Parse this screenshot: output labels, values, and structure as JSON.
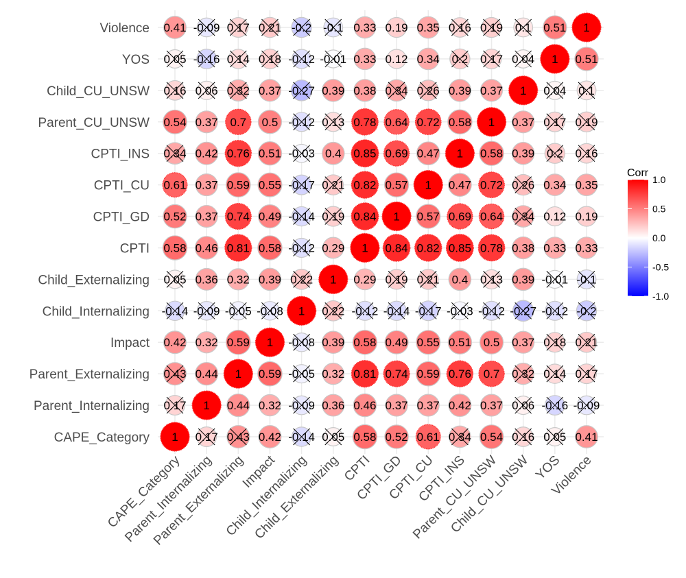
{
  "chart_data": {
    "type": "heatmap",
    "style": "circle correlation matrix",
    "variables": [
      "CAPE_Category",
      "Parent_Internalizing",
      "Parent_Externalizing",
      "Impact",
      "Child_Internalizing",
      "Child_Externalizing",
      "CPTI",
      "CPTI_GD",
      "CPTI_CU",
      "CPTI_INS",
      "Parent_CU_UNSW",
      "Child_CU_UNSW",
      "YOS",
      "Violence"
    ],
    "matrix": [
      [
        1,
        0.17,
        0.43,
        0.42,
        -0.14,
        0.05,
        0.58,
        0.52,
        0.61,
        0.34,
        0.54,
        0.16,
        0.05,
        0.41
      ],
      [
        0.17,
        1,
        0.44,
        0.32,
        -0.09,
        0.36,
        0.46,
        0.37,
        0.37,
        0.42,
        0.37,
        0.06,
        -0.16,
        -0.09
      ],
      [
        0.43,
        0.44,
        1,
        0.59,
        -0.05,
        0.32,
        0.81,
        0.74,
        0.59,
        0.76,
        0.7,
        0.32,
        0.14,
        0.17
      ],
      [
        0.42,
        0.32,
        0.59,
        1,
        -0.08,
        0.39,
        0.58,
        0.49,
        0.55,
        0.51,
        0.5,
        0.37,
        0.18,
        0.21
      ],
      [
        -0.14,
        -0.09,
        -0.05,
        -0.08,
        1,
        0.22,
        -0.12,
        -0.14,
        -0.17,
        -0.03,
        -0.12,
        -0.27,
        -0.12,
        -0.2
      ],
      [
        0.05,
        0.36,
        0.32,
        0.39,
        0.22,
        1,
        0.29,
        0.19,
        0.21,
        0.4,
        0.13,
        0.39,
        -0.01,
        -0.1
      ],
      [
        0.58,
        0.46,
        0.81,
        0.58,
        -0.12,
        0.29,
        1,
        0.84,
        0.82,
        0.85,
        0.78,
        0.38,
        0.33,
        0.33
      ],
      [
        0.52,
        0.37,
        0.74,
        0.49,
        -0.14,
        0.19,
        0.84,
        1,
        0.57,
        0.69,
        0.64,
        0.34,
        0.12,
        0.19
      ],
      [
        0.61,
        0.37,
        0.59,
        0.55,
        -0.17,
        0.21,
        0.82,
        0.57,
        1,
        0.47,
        0.72,
        0.26,
        0.34,
        0.35
      ],
      [
        0.34,
        0.42,
        0.76,
        0.51,
        -0.03,
        0.4,
        0.85,
        0.69,
        0.47,
        1,
        0.58,
        0.39,
        0.2,
        0.16
      ],
      [
        0.54,
        0.37,
        0.7,
        0.5,
        -0.12,
        0.13,
        0.78,
        0.64,
        0.72,
        0.58,
        1,
        0.37,
        0.17,
        0.19
      ],
      [
        0.16,
        0.06,
        0.32,
        0.37,
        -0.27,
        0.39,
        0.38,
        0.34,
        0.26,
        0.39,
        0.37,
        1,
        0.04,
        0.1
      ],
      [
        0.05,
        -0.16,
        0.14,
        0.18,
        -0.12,
        -0.01,
        0.33,
        0.12,
        0.34,
        0.2,
        0.17,
        0.04,
        1,
        0.51
      ],
      [
        0.41,
        -0.09,
        0.17,
        0.21,
        -0.2,
        -0.1,
        0.33,
        0.19,
        0.35,
        0.16,
        0.19,
        0.1,
        0.51,
        1
      ]
    ],
    "insignificant": [
      [
        0,
        1,
        1,
        0,
        1,
        1,
        0,
        0,
        0,
        1,
        0,
        1,
        1,
        0
      ],
      [
        1,
        0,
        0,
        0,
        1,
        0,
        0,
        0,
        0,
        0,
        0,
        1,
        1,
        1
      ],
      [
        1,
        0,
        0,
        0,
        1,
        0,
        0,
        0,
        0,
        0,
        0,
        1,
        1,
        1
      ],
      [
        0,
        0,
        0,
        0,
        1,
        0,
        0,
        0,
        0,
        0,
        0,
        0,
        1,
        1
      ],
      [
        1,
        1,
        1,
        1,
        0,
        1,
        1,
        1,
        1,
        1,
        1,
        1,
        1,
        1
      ],
      [
        1,
        0,
        0,
        0,
        1,
        0,
        0,
        1,
        1,
        0,
        1,
        0,
        1,
        1
      ],
      [
        0,
        0,
        0,
        0,
        1,
        0,
        0,
        0,
        0,
        0,
        0,
        0,
        0,
        0
      ],
      [
        0,
        0,
        0,
        0,
        1,
        1,
        0,
        0,
        0,
        0,
        0,
        1,
        0,
        0
      ],
      [
        0,
        0,
        0,
        0,
        1,
        1,
        0,
        0,
        0,
        0,
        0,
        1,
        0,
        0
      ],
      [
        1,
        0,
        0,
        0,
        1,
        0,
        0,
        0,
        0,
        0,
        0,
        0,
        1,
        1
      ],
      [
        0,
        0,
        0,
        0,
        1,
        1,
        0,
        0,
        0,
        0,
        0,
        0,
        1,
        1
      ],
      [
        1,
        1,
        1,
        0,
        1,
        0,
        0,
        1,
        1,
        0,
        0,
        0,
        1,
        1
      ],
      [
        1,
        1,
        1,
        1,
        1,
        1,
        0,
        0,
        0,
        1,
        1,
        1,
        0,
        0
      ],
      [
        0,
        1,
        1,
        1,
        1,
        1,
        0,
        0,
        0,
        1,
        1,
        1,
        0,
        0
      ]
    ],
    "legend": {
      "title": "Corr",
      "ticks": [
        "1.0",
        "0.5",
        "0.0",
        "-0.5",
        "-1.0"
      ],
      "tick_values": [
        1,
        0.5,
        0,
        -0.5,
        -1
      ],
      "range": [
        -1,
        1
      ],
      "placement": "right"
    },
    "colors": {
      "low": "#0000FF",
      "mid": "#FFFFFF",
      "high": "#FF0000",
      "outline": "#c8c8c8",
      "grid": "#ebebeb",
      "cross": "#000000"
    },
    "grid": true,
    "xlabel": "",
    "ylabel": ""
  }
}
